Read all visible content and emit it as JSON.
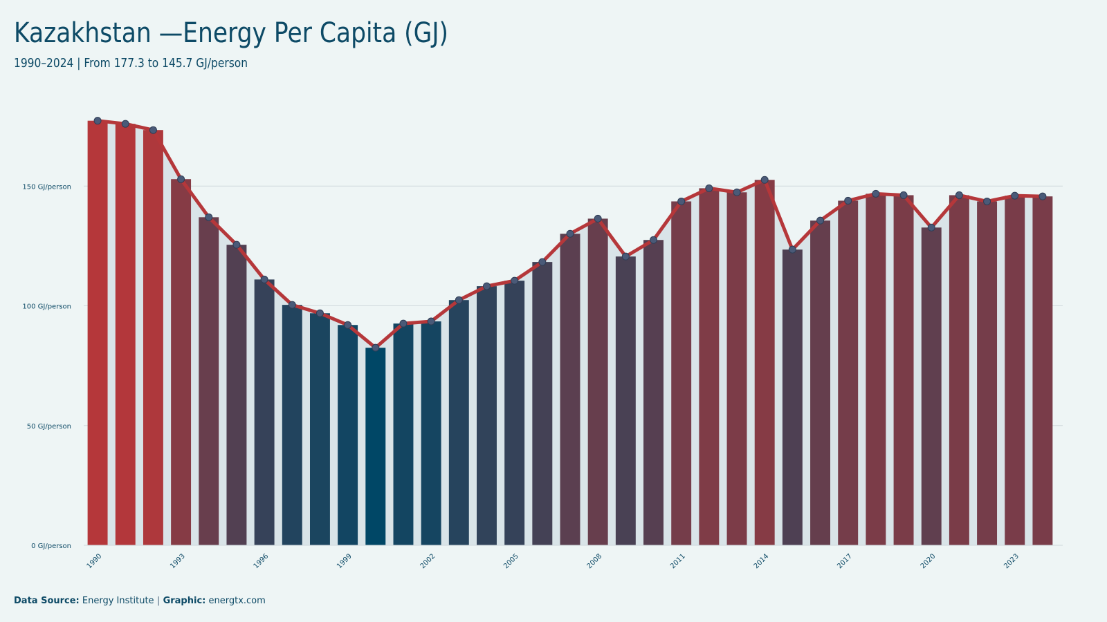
{
  "chart_data": {
    "type": "bar-line",
    "title": "Kazakhstan —Energy Per Capita (GJ)",
    "subtitle": "1990–2024 | From 177.3 to 145.7 GJ/person",
    "x": [
      1990,
      1991,
      1992,
      1993,
      1994,
      1995,
      1996,
      1997,
      1998,
      1999,
      2000,
      2001,
      2002,
      2003,
      2004,
      2005,
      2006,
      2007,
      2008,
      2009,
      2010,
      2011,
      2012,
      2013,
      2014,
      2015,
      2016,
      2017,
      2018,
      2019,
      2020,
      2021,
      2022,
      2023,
      2024
    ],
    "values": [
      177.3,
      176.0,
      173.4,
      152.9,
      137.0,
      125.5,
      111.0,
      100.4,
      96.9,
      92.0,
      82.5,
      92.6,
      93.5,
      102.4,
      108.2,
      110.5,
      118.3,
      130.1,
      136.4,
      120.6,
      127.5,
      143.6,
      149.1,
      147.4,
      152.6,
      123.5,
      135.6,
      143.9,
      146.8,
      146.2,
      132.7,
      146.2,
      143.6,
      146.0,
      145.7
    ],
    "xlim": [
      1989.5,
      2024.5
    ],
    "xticks": [
      1990,
      1993,
      1996,
      1999,
      2002,
      2005,
      2008,
      2011,
      2014,
      2017,
      2020,
      2023
    ],
    "ylim": [
      0,
      185
    ],
    "yticks": [
      {
        "value": 0,
        "label": "0 GJ/person"
      },
      {
        "value": 50,
        "label": "50 GJ/person"
      },
      {
        "value": 100,
        "label": "100 GJ/person"
      },
      {
        "value": 150,
        "label": "150 GJ/person"
      }
    ],
    "grid": true,
    "color_low": "#004766",
    "color_high": "#b5373a",
    "line_color": "#b5373a",
    "marker_color": "#4a5a78",
    "area_color": "#d9e4e8",
    "source_label": "Data Source:",
    "source": "Energy Institute",
    "separator": "|",
    "graphic_label": "Graphic:",
    "graphic": "energtx.com"
  }
}
